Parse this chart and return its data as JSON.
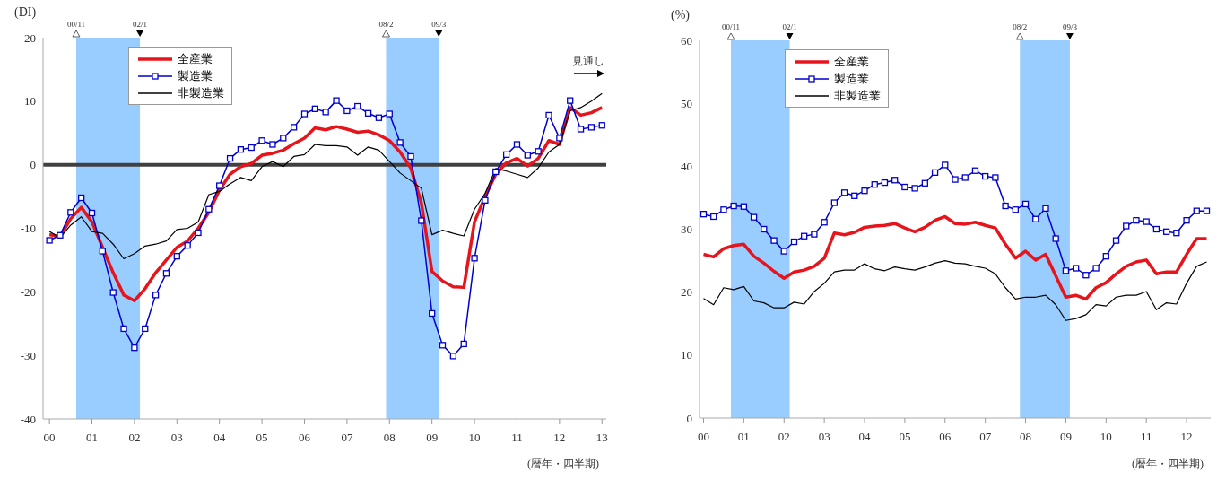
{
  "chart_data": [
    {
      "type": "line",
      "ylabel": "(DI)",
      "xlabel": "(暦年・四半期)",
      "legend": "top left",
      "grid": false,
      "x": [
        2000,
        2000.25,
        2000.5,
        2000.75,
        2001,
        2001.25,
        2001.5,
        2001.75,
        2002,
        2002.25,
        2002.5,
        2002.75,
        2003,
        2003.25,
        2003.5,
        2003.75,
        2004,
        2004.25,
        2004.5,
        2004.75,
        2005,
        2005.25,
        2005.5,
        2005.75,
        2006,
        2006.25,
        2006.5,
        2006.75,
        2007,
        2007.25,
        2007.5,
        2007.75,
        2008,
        2008.25,
        2008.5,
        2008.75,
        2009,
        2009.25,
        2009.5,
        2009.75,
        2010,
        2010.25,
        2010.5,
        2010.75,
        2011,
        2011.25,
        2011.5,
        2011.75,
        2012,
        2012.25,
        2012.5,
        2012.75,
        2013
      ],
      "series": [
        {
          "name": "全産業",
          "color": "#e8141c",
          "marker": "none",
          "values": [
            -11,
            -11.3,
            -8.5,
            -6.7,
            -9,
            -13,
            -17,
            -20.5,
            -21.4,
            -19.5,
            -17,
            -15,
            -13,
            -12,
            -10,
            -7.5,
            -4,
            -1.5,
            -0.3,
            0.2,
            1.5,
            1.8,
            2.3,
            3.3,
            4.2,
            5.8,
            5.5,
            6,
            5.6,
            5.1,
            5.3,
            4.7,
            3.8,
            2,
            -0.5,
            -6,
            -16.8,
            -18.3,
            -19.2,
            -19.3,
            -9,
            -5,
            -1.5,
            0.3,
            1,
            -0.2,
            1,
            3.8,
            3.2,
            9,
            7.8,
            8.2,
            9
          ]
        },
        {
          "name": "製造業",
          "color": "#0000cc",
          "marker": "square",
          "values": [
            -11.9,
            -11.1,
            -7.5,
            -5.2,
            -7.6,
            -13.6,
            -20.1,
            -25.8,
            -28.8,
            -25.8,
            -20.5,
            -17.1,
            -14.4,
            -12.7,
            -10.7,
            -7,
            -3.3,
            1,
            2.4,
            2.7,
            3.8,
            3.2,
            4.2,
            5.9,
            8,
            8.8,
            8.3,
            10.1,
            8.5,
            9.2,
            8.1,
            7.4,
            8,
            3.5,
            1.3,
            -8.8,
            -23.4,
            -28.4,
            -30.1,
            -28.2,
            -14.7,
            -5.6,
            -1.1,
            1.6,
            3.2,
            1.5,
            2.1,
            7.8,
            4.2,
            10.1,
            5.6,
            5.9,
            6.2
          ]
        },
        {
          "name": "非製造業",
          "color": "#000000",
          "marker": "none",
          "values": [
            -10.5,
            -11.5,
            -9.5,
            -8.2,
            -10.5,
            -10.8,
            -12.5,
            -14.8,
            -14,
            -12.8,
            -12.5,
            -12,
            -10.2,
            -10,
            -9,
            -4.7,
            -4.2,
            -3,
            -2,
            -2.5,
            -0.3,
            0.5,
            -0.3,
            1.3,
            1.6,
            3.2,
            3,
            3,
            2.8,
            1.5,
            2.8,
            2.3,
            0.5,
            -1.3,
            -2.5,
            -3.7,
            -11,
            -10.3,
            -10.8,
            -11.2,
            -7,
            -4.5,
            -0.6,
            -1,
            -1.5,
            -2,
            -0.5,
            2,
            3.2,
            8.5,
            9,
            10,
            11.2
          ]
        }
      ],
      "xlim": [
        1999.85,
        2013.1
      ],
      "xticks": [
        {
          "value": 2000,
          "label": "00"
        },
        {
          "value": 2001,
          "label": "01"
        },
        {
          "value": 2002,
          "label": "02"
        },
        {
          "value": 2003,
          "label": "03"
        },
        {
          "value": 2004,
          "label": "04"
        },
        {
          "value": 2005,
          "label": "05"
        },
        {
          "value": 2006,
          "label": "06"
        },
        {
          "value": 2007,
          "label": "07"
        },
        {
          "value": 2008,
          "label": "08"
        },
        {
          "value": 2009,
          "label": "09"
        },
        {
          "value": 2010,
          "label": "10"
        },
        {
          "value": 2011,
          "label": "11"
        },
        {
          "value": 2012,
          "label": "12"
        },
        {
          "value": 2013,
          "label": "13"
        }
      ],
      "ylim": [
        -40,
        20
      ],
      "yticks": [
        -40,
        -30,
        -20,
        -10,
        0,
        10,
        20
      ],
      "ref_lines": [
        {
          "axis": "y",
          "value": 0,
          "label": null,
          "color": "#404040"
        }
      ],
      "bands": [
        {
          "axis": "x",
          "from": 2000.63,
          "to": 2002.13,
          "label": null,
          "color": "#99ccff"
        },
        {
          "axis": "x",
          "from": 2007.92,
          "to": 2009.16,
          "label": null,
          "color": "#99ccff"
        }
      ],
      "annotations": [
        {
          "text": "00/11",
          "x": 2000.63,
          "y": 20
        },
        {
          "text": "02/1",
          "x": 2002.13,
          "y": 20
        },
        {
          "text": "08/2",
          "x": 2007.92,
          "y": 20
        },
        {
          "text": "09/3",
          "x": 2009.16,
          "y": 20
        },
        "見通し"
      ]
    },
    {
      "type": "line",
      "ylabel": "(%)",
      "xlabel": "(暦年・四半期)",
      "legend": "top left",
      "grid": false,
      "x": [
        2000,
        2000.25,
        2000.5,
        2000.75,
        2001,
        2001.25,
        2001.5,
        2001.75,
        2002,
        2002.25,
        2002.5,
        2002.75,
        2003,
        2003.25,
        2003.5,
        2003.75,
        2004,
        2004.25,
        2004.5,
        2004.75,
        2005,
        2005.25,
        2005.5,
        2005.75,
        2006,
        2006.25,
        2006.5,
        2006.75,
        2007,
        2007.25,
        2007.5,
        2007.75,
        2008,
        2008.25,
        2008.5,
        2008.75,
        2009,
        2009.25,
        2009.5,
        2009.75,
        2010,
        2010.25,
        2010.5,
        2010.75,
        2011,
        2011.25,
        2011.5,
        2011.75,
        2012,
        2012.25,
        2012.5
      ],
      "series": [
        {
          "name": "全産業",
          "color": "#e8141c",
          "marker": "none",
          "values": [
            26,
            25.6,
            26.9,
            27.4,
            27.6,
            25.7,
            24.6,
            23.3,
            22.2,
            23.2,
            23.5,
            24.1,
            25.4,
            29.4,
            29.1,
            29.5,
            30.3,
            30.5,
            30.6,
            30.9,
            30.2,
            29.6,
            30.3,
            31.4,
            32,
            30.9,
            30.8,
            31.1,
            30.6,
            30.2,
            27.6,
            25.4,
            26.5,
            25.1,
            26,
            22.6,
            19.2,
            19.5,
            18.9,
            20.7,
            21.5,
            22.9,
            24.1,
            24.8,
            25.1,
            22.9,
            23.2,
            23.2,
            26,
            28.5,
            28.5
          ]
        },
        {
          "name": "製造業",
          "color": "#0000cc",
          "marker": "square",
          "values": [
            32.4,
            32,
            33.1,
            33.7,
            33.6,
            31.9,
            30,
            28.2,
            26.5,
            28,
            28.9,
            29.2,
            31.1,
            34.2,
            35.8,
            35.3,
            36.1,
            37.1,
            37.4,
            37.8,
            36.7,
            36.5,
            37.3,
            39,
            40.2,
            37.9,
            38.2,
            39.3,
            38.4,
            38.2,
            33.7,
            33.1,
            34,
            31.6,
            33.3,
            28.5,
            23.4,
            23.8,
            22.7,
            23.8,
            25.7,
            28.2,
            30.5,
            31.4,
            31.2,
            30,
            29.6,
            29.4,
            31.4,
            32.9,
            32.9
          ]
        },
        {
          "name": "非製造業",
          "color": "#000000",
          "marker": "none",
          "values": [
            19,
            18,
            20.7,
            20.4,
            20.9,
            18.6,
            18.3,
            17.5,
            17.5,
            18.4,
            18.1,
            20.1,
            21.4,
            23.2,
            23.5,
            23.5,
            24.5,
            23.7,
            23.4,
            24,
            23.7,
            23.5,
            24,
            24.6,
            25,
            24.6,
            24.5,
            24.1,
            23.8,
            22.9,
            20.7,
            18.9,
            19.2,
            19.2,
            19.5,
            18,
            15.5,
            15.8,
            16.4,
            18,
            17.8,
            19.2,
            19.5,
            19.5,
            20.1,
            17.2,
            18.3,
            18.1,
            21.4,
            24.1,
            24.8
          ]
        }
      ],
      "xlim": [
        1999.9,
        2012.6
      ],
      "xticks": [
        {
          "value": 2000,
          "label": "00"
        },
        {
          "value": 2001,
          "label": "01"
        },
        {
          "value": 2002,
          "label": "02"
        },
        {
          "value": 2003,
          "label": "03"
        },
        {
          "value": 2004,
          "label": "04"
        },
        {
          "value": 2005,
          "label": "05"
        },
        {
          "value": 2006,
          "label": "06"
        },
        {
          "value": 2007,
          "label": "07"
        },
        {
          "value": 2008,
          "label": "08"
        },
        {
          "value": 2009,
          "label": "09"
        },
        {
          "value": 2010,
          "label": "10"
        },
        {
          "value": 2011,
          "label": "11"
        },
        {
          "value": 2012,
          "label": "12"
        }
      ],
      "ylim": [
        0,
        60
      ],
      "yticks": [
        0,
        10,
        20,
        30,
        40,
        50,
        60
      ],
      "bands": [
        {
          "axis": "x",
          "from": 2000.68,
          "to": 2002.14,
          "label": null,
          "color": "#99ccff"
        },
        {
          "axis": "x",
          "from": 2007.86,
          "to": 2009.1,
          "label": null,
          "color": "#99ccff"
        }
      ],
      "annotations": [
        {
          "text": "00/11",
          "x": 2000.68,
          "y": 60
        },
        {
          "text": "02/1",
          "x": 2002.14,
          "y": 60
        },
        {
          "text": "08/2",
          "x": 2007.86,
          "y": 60
        },
        {
          "text": "09/3",
          "x": 2009.1,
          "y": 60
        }
      ]
    }
  ]
}
